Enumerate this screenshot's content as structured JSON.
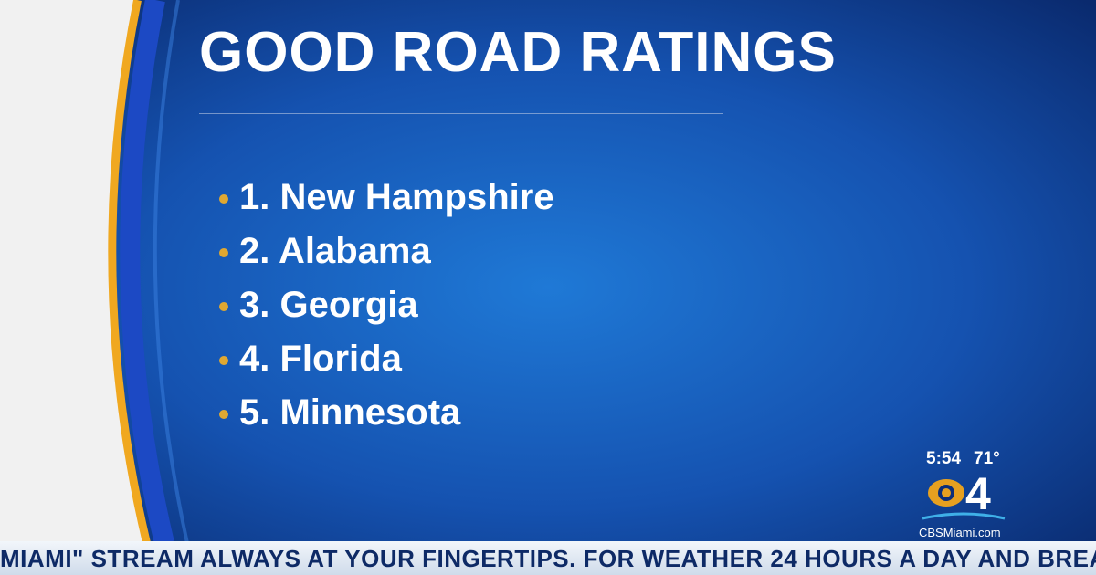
{
  "header": {
    "title": "GOOD ROAD RATINGS"
  },
  "list": {
    "items": [
      "1. New Hampshire",
      "2. Alabama",
      "3. Georgia",
      "4. Florida",
      "5. Minnesota"
    ]
  },
  "bug": {
    "time": "5:54",
    "temperature": "71°",
    "channel": "4",
    "website": "CBSMiami.com"
  },
  "ticker": {
    "text": "MIAMI\" STREAM ALWAYS AT YOUR FINGERTIPS. FOR WEATHER 24 HOURS A DAY AND BREAKING NEWS"
  }
}
